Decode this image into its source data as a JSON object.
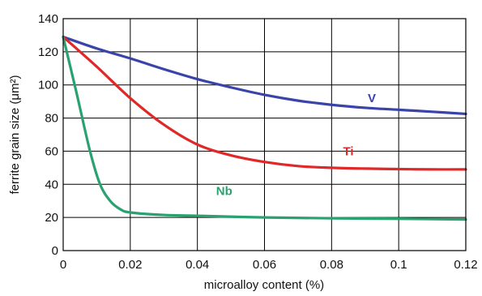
{
  "chart_data": {
    "type": "line",
    "title": "",
    "xlabel": "microalloy content (%)",
    "ylabel": "ferrite grain size (μm²)",
    "xlim": [
      0,
      0.12
    ],
    "ylim": [
      0,
      140
    ],
    "x_ticks": [
      0,
      0.02,
      0.04,
      0.06,
      0.08,
      0.1,
      0.12
    ],
    "x_tick_labels": [
      "0",
      "0.02",
      "0.04",
      "0.06",
      "0.08",
      "0.1",
      "0.12"
    ],
    "y_ticks": [
      0,
      20,
      40,
      60,
      80,
      100,
      120,
      140
    ],
    "y_tick_labels": [
      "0",
      "20",
      "40",
      "60",
      "80",
      "100",
      "120",
      "140"
    ],
    "grid": true,
    "series": [
      {
        "name": "V",
        "color": "#3a44a8",
        "label_at": [
          0.092,
          92
        ],
        "x": [
          0,
          0.01,
          0.02,
          0.03,
          0.04,
          0.05,
          0.06,
          0.07,
          0.08,
          0.09,
          0.1,
          0.11,
          0.12
        ],
        "y": [
          129,
          122,
          116,
          109.5,
          103.5,
          98.5,
          94,
          90.5,
          88,
          86.2,
          85,
          83.8,
          82.5
        ]
      },
      {
        "name": "Ti",
        "color": "#e02828",
        "label_at": [
          0.085,
          60
        ],
        "x": [
          0,
          0.01,
          0.02,
          0.03,
          0.04,
          0.05,
          0.06,
          0.07,
          0.08,
          0.09,
          0.1,
          0.11,
          0.12
        ],
        "y": [
          129,
          111,
          92,
          76,
          64,
          57.5,
          53.5,
          51,
          50,
          49.5,
          49.2,
          49,
          49
        ]
      },
      {
        "name": "Nb",
        "color": "#2aa270",
        "label_at": [
          0.048,
          36
        ],
        "x": [
          0,
          0.004,
          0.008,
          0.011,
          0.014,
          0.017,
          0.02,
          0.03,
          0.04,
          0.06,
          0.08,
          0.1,
          0.12
        ],
        "y": [
          129,
          95,
          60,
          40,
          30,
          25,
          23,
          21.5,
          21,
          20,
          19.5,
          19.2,
          18.8
        ]
      }
    ]
  }
}
